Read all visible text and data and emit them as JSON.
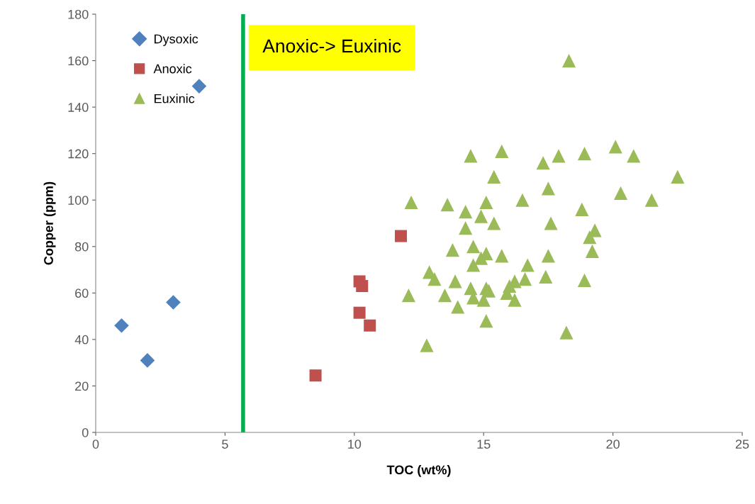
{
  "chart_data": {
    "type": "scatter",
    "xlabel": "TOC (wt%)",
    "ylabel": "Copper (ppm)",
    "xlim": [
      0,
      25
    ],
    "xticks": [
      0,
      5,
      10,
      15,
      20,
      25
    ],
    "ylim": [
      0,
      180
    ],
    "yticks": [
      0,
      20,
      40,
      60,
      80,
      100,
      120,
      140,
      160,
      180
    ],
    "grid": false,
    "legend": "top left",
    "ref_lines": [
      {
        "axis": "x",
        "value": 5.7,
        "color": "#00b050"
      }
    ],
    "annotations": [
      "Anoxic-> Euxinic"
    ],
    "series": [
      {
        "name": "Dysoxic",
        "color": "#4f81bd",
        "marker": "diamond",
        "x": [
          1,
          2,
          3,
          4
        ],
        "values": [
          46,
          31,
          56,
          149
        ]
      },
      {
        "name": "Anoxic",
        "color": "#c0504d",
        "marker": "square",
        "x": [
          8.5,
          10.2,
          10.3,
          10.2,
          10.6,
          11.8
        ],
        "values": [
          24.5,
          65,
          63,
          51.5,
          46,
          84.5
        ]
      },
      {
        "name": "Euxinic",
        "color": "#9bbb59",
        "marker": "triangle",
        "x": [
          18.3,
          12.2,
          12.1,
          12.8,
          12.9,
          13.1,
          13.6,
          13.5,
          13.8,
          13.9,
          14.0,
          14.3,
          14.3,
          14.5,
          14.5,
          14.6,
          14.6,
          14.6,
          14.9,
          14.9,
          15.0,
          15.1,
          15.1,
          15.1,
          15.1,
          15.2,
          15.4,
          15.4,
          15.7,
          15.7,
          15.9,
          16.0,
          16.2,
          16.2,
          16.5,
          16.6,
          16.7,
          17.3,
          17.4,
          17.5,
          17.5,
          17.6,
          17.9,
          18.2,
          18.8,
          18.9,
          18.9,
          19.1,
          19.2,
          19.3,
          20.1,
          20.3,
          20.8,
          21.5,
          22.5
        ],
        "values": [
          160,
          99,
          59,
          37.5,
          69,
          66,
          98,
          59,
          78.5,
          65,
          54,
          95,
          88,
          119,
          62,
          72,
          80,
          58,
          93,
          75,
          57,
          99,
          77,
          62,
          48,
          61,
          110,
          90,
          121,
          76,
          60,
          63,
          65,
          57,
          100,
          66,
          72,
          116,
          67,
          105,
          76,
          90,
          119,
          43,
          96,
          120,
          65.5,
          84,
          78,
          87,
          123,
          103,
          119,
          100,
          110
        ]
      }
    ]
  }
}
